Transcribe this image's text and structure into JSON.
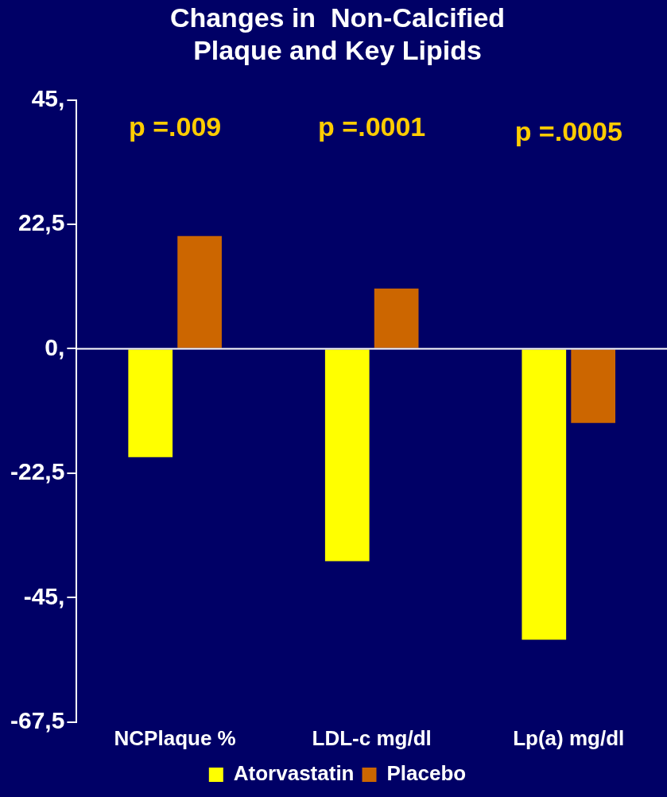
{
  "chart_data": {
    "type": "bar",
    "title": "Changes in  Non-Calcified\nPlaque and Key Lipids",
    "categories": [
      "NCPlaque %",
      "LDL-c mg/dl",
      "Lp(a) mg/dl"
    ],
    "series": [
      {
        "name": "Atorvastatin",
        "color": "#ffff00",
        "values": [
          -19.6,
          -38.4,
          -52.6
        ]
      },
      {
        "name": "Placebo",
        "color": "#cc6600",
        "values": [
          20.4,
          10.9,
          -13.4
        ]
      }
    ],
    "ylim": [
      -67.5,
      45
    ],
    "yticks": [
      {
        "value": -67.5,
        "label": "-67,5"
      },
      {
        "value": -45,
        "label": "-45,"
      },
      {
        "value": -22.5,
        "label": "-22,5"
      },
      {
        "value": 0,
        "label": "0,"
      },
      {
        "value": 22.5,
        "label": "22,5"
      },
      {
        "value": 45,
        "label": "45,"
      }
    ],
    "annotations": [
      "p =.009",
      "p =.0001",
      "p =.0005"
    ],
    "ref_lines": [
      {
        "axis": "y",
        "value": 0,
        "color": "#ffffff"
      }
    ],
    "grid": false,
    "legend": "bottom"
  }
}
